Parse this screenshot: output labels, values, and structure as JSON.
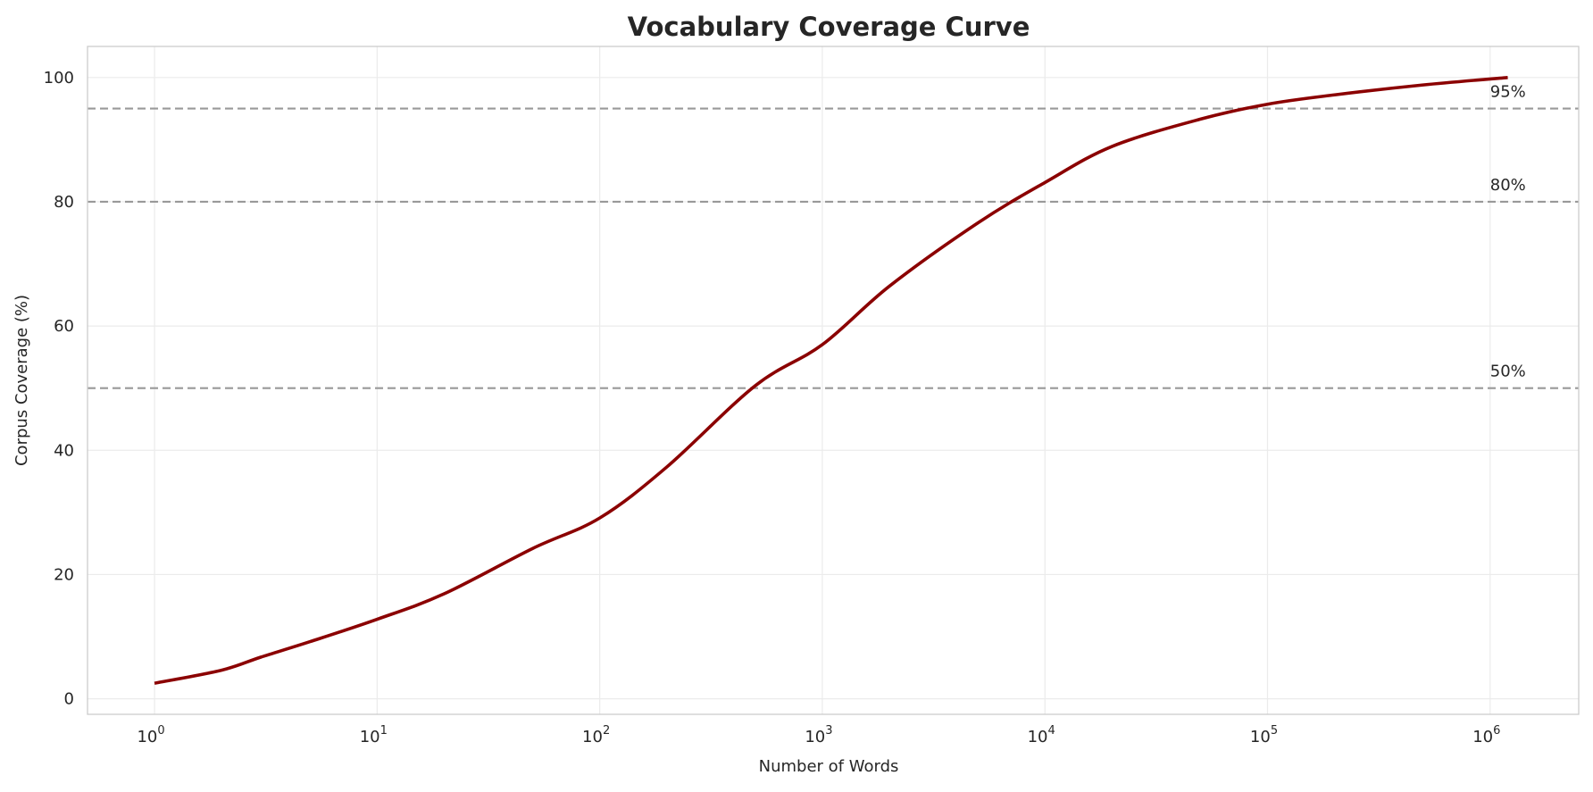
{
  "chart_data": {
    "type": "line",
    "title": "Vocabulary Coverage Curve",
    "xlabel": "Number of Words",
    "ylabel": "Corpus Coverage (%)",
    "xscale": "log",
    "xlim": [
      0.5,
      2500000
    ],
    "ylim": [
      -2.5,
      105
    ],
    "grid": true,
    "xticks": [
      {
        "value": 1,
        "base": "10",
        "exp": "0"
      },
      {
        "value": 10,
        "base": "10",
        "exp": "1"
      },
      {
        "value": 100,
        "base": "10",
        "exp": "2"
      },
      {
        "value": 1000,
        "base": "10",
        "exp": "3"
      },
      {
        "value": 10000,
        "base": "10",
        "exp": "4"
      },
      {
        "value": 100000,
        "base": "10",
        "exp": "5"
      },
      {
        "value": 1000000,
        "base": "10",
        "exp": "6"
      }
    ],
    "yticks": [
      "0",
      "20",
      "40",
      "60",
      "80",
      "100"
    ],
    "series": [
      {
        "color": "#8b0000",
        "x": [
          1,
          2,
          3,
          5,
          10,
          20,
          50,
          100,
          200,
          500,
          1000,
          2000,
          5000,
          10000,
          20000,
          50000,
          100000,
          200000,
          500000,
          1200000
        ],
        "y": [
          2.5,
          4.6,
          6.7,
          9.2,
          12.8,
          16.9,
          24.2,
          29.1,
          37.3,
          50.4,
          57.0,
          66.4,
          76.6,
          83.1,
          88.9,
          93.3,
          95.7,
          97.2,
          98.8,
          100.0
        ]
      }
    ],
    "reference_lines": [
      {
        "y": 95,
        "label": "95%",
        "color": "#999999"
      },
      {
        "y": 80,
        "label": "80%",
        "color": "#999999"
      },
      {
        "y": 50,
        "label": "50%",
        "color": "#999999"
      }
    ]
  }
}
